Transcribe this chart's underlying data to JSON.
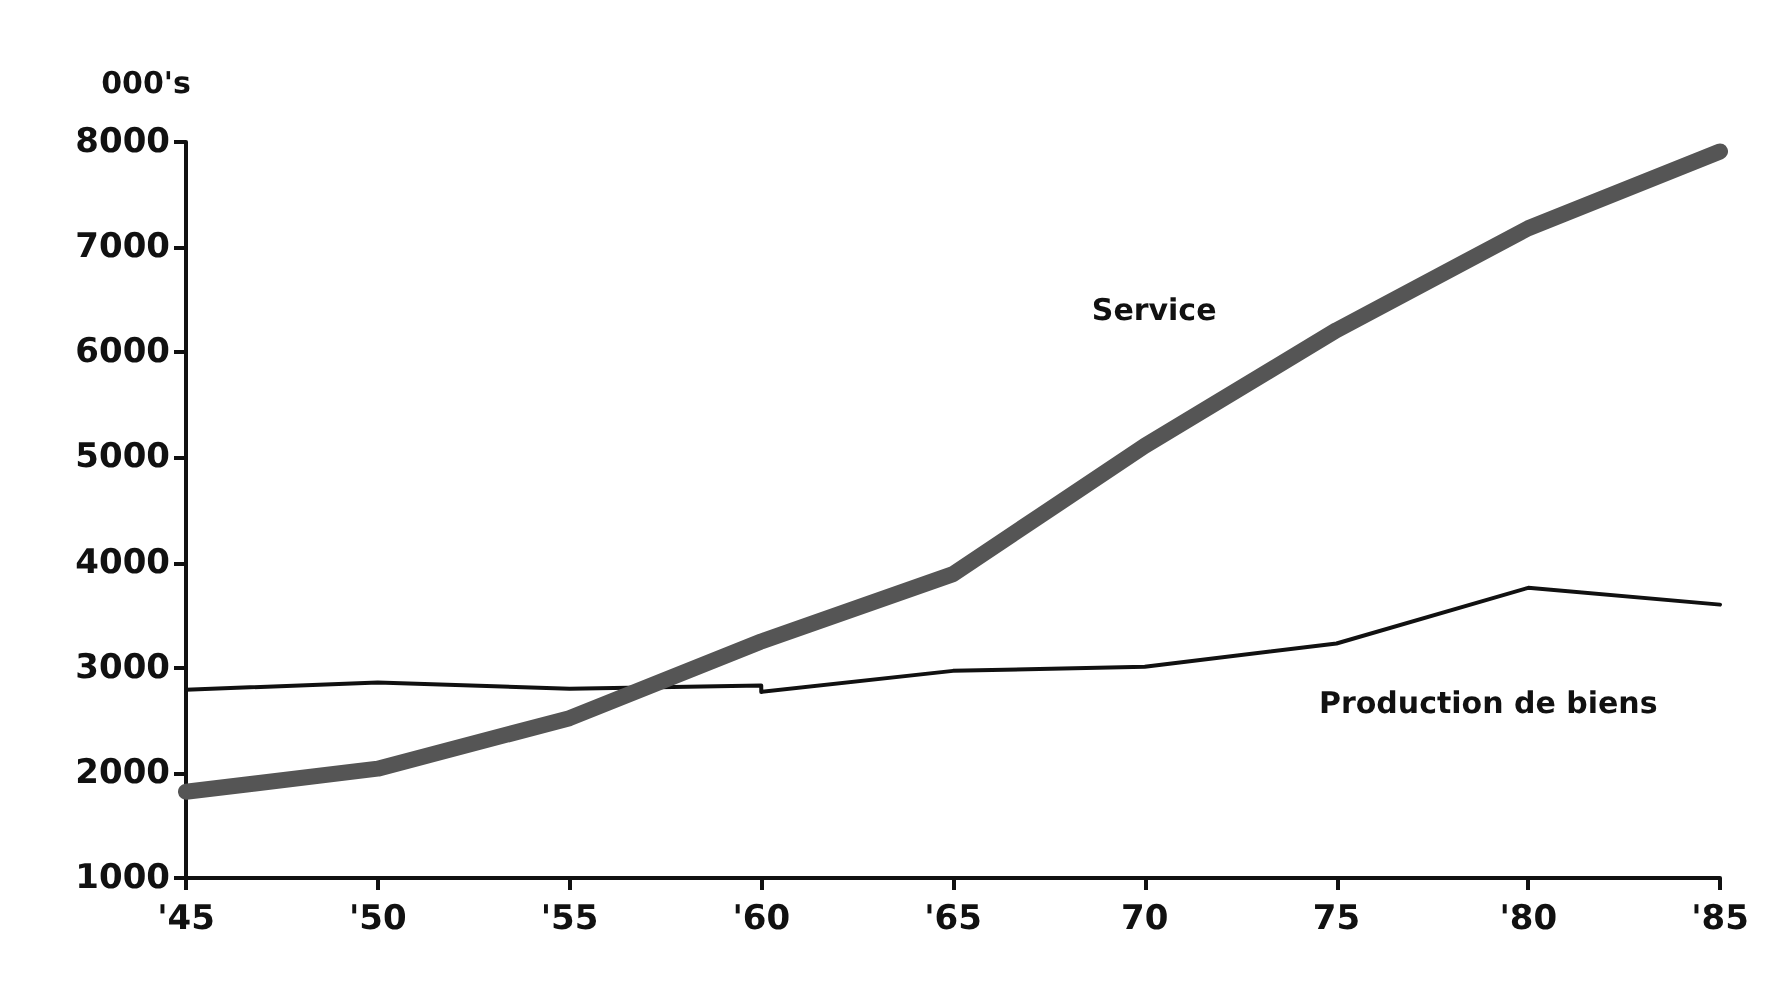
{
  "chart_data": {
    "type": "line",
    "ylabel": "000's",
    "xlim": [
      1945,
      1985
    ],
    "xticks": [
      {
        "value": 1945,
        "label": "'45"
      },
      {
        "value": 1950,
        "label": "'50"
      },
      {
        "value": 1955,
        "label": "'55"
      },
      {
        "value": 1960,
        "label": "'60"
      },
      {
        "value": 1965,
        "label": "'65"
      },
      {
        "value": 1970,
        "label": "70"
      },
      {
        "value": 1975,
        "label": "75"
      },
      {
        "value": 1980,
        "label": "'80"
      },
      {
        "value": 1985,
        "label": "'85"
      }
    ],
    "ylim": [
      1000,
      8000
    ],
    "yticks": [
      1000,
      2000,
      3000,
      4000,
      5000,
      6000,
      7000,
      8000
    ],
    "grid": false,
    "legend": false,
    "marker": "none",
    "series": [
      {
        "name": "Service",
        "color": "#555555",
        "x": [
          1945,
          1950,
          1955,
          1960,
          1965,
          1970,
          1975,
          1980,
          1985
        ],
        "values": [
          1820,
          2040,
          2520,
          3250,
          3890,
          5110,
          6210,
          7180,
          7910
        ]
      },
      {
        "name": "Production de biens",
        "color": "#111111",
        "x": [
          1945,
          1950,
          1955,
          1960,
          1960,
          1965,
          1970,
          1975,
          1980,
          1985
        ],
        "values": [
          2790,
          2860,
          2800,
          2830,
          2770,
          2970,
          3010,
          3230,
          3760,
          3600
        ]
      }
    ]
  }
}
